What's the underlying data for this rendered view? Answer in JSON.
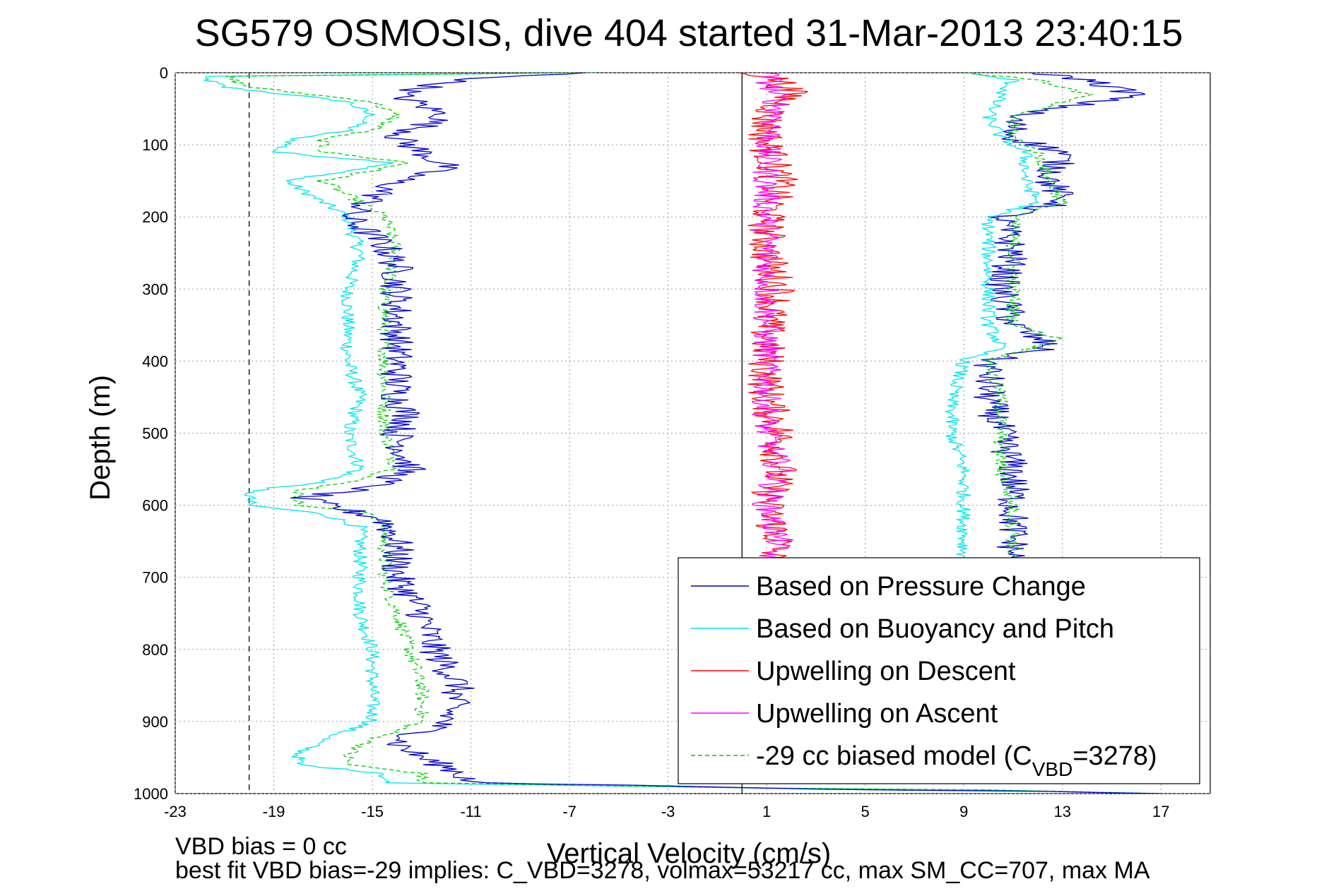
{
  "chart_data": {
    "type": "line",
    "title": "SG579 OSMOSIS, dive 404 started 31-Mar-2013 23:40:15",
    "xlabel": "Vertical Velocity (cm/s)",
    "ylabel": "Depth (m)",
    "xlim": [
      -23,
      19
    ],
    "ylim": [
      0,
      1000
    ],
    "y_reversed": true,
    "xticks": [
      -23,
      -19,
      -15,
      -11,
      -7,
      -3,
      1,
      5,
      9,
      13,
      17
    ],
    "yticks": [
      0,
      100,
      200,
      300,
      400,
      500,
      600,
      700,
      800,
      900,
      1000
    ],
    "grid": true,
    "legend_position": "bottom-right",
    "reference_lines": [
      {
        "x": -20,
        "style": "dashed",
        "color": "#000000"
      },
      {
        "x": 0,
        "style": "solid",
        "color": "#000000"
      }
    ],
    "series": [
      {
        "name": "Based on Pressure Change",
        "color": "#0000cc",
        "style": "solid",
        "noise": 0.7,
        "points": [
          [
            -6.5,
            0
          ],
          [
            -11.5,
            10
          ],
          [
            -14,
            30
          ],
          [
            -12,
            60
          ],
          [
            -14,
            90
          ],
          [
            -13,
            110
          ],
          [
            -12,
            130
          ],
          [
            -14,
            150
          ],
          [
            -16,
            200
          ],
          [
            -14.5,
            240
          ],
          [
            -14,
            270
          ],
          [
            -14,
            300
          ],
          [
            -14,
            350
          ],
          [
            -14,
            400
          ],
          [
            -14,
            450
          ],
          [
            -13.5,
            480
          ],
          [
            -14,
            500
          ],
          [
            -13.5,
            550
          ],
          [
            -15,
            575
          ],
          [
            -18,
            590
          ],
          [
            -14.5,
            620
          ],
          [
            -14,
            650
          ],
          [
            -14,
            700
          ],
          [
            -13,
            750
          ],
          [
            -12.5,
            800
          ],
          [
            -11.5,
            850
          ],
          [
            -12,
            900
          ],
          [
            -14,
            930
          ],
          [
            -13,
            950
          ],
          [
            -11.5,
            970
          ],
          [
            -11,
            985
          ],
          [
            -2,
            990
          ],
          [
            3,
            994
          ],
          [
            12,
            997
          ],
          [
            17,
            1000
          ]
        ]
      },
      {
        "name": "Based on Buoyancy and Pitch",
        "color": "#00e5ee",
        "style": "solid",
        "noise": 0.3,
        "points": [
          [
            -6,
            0
          ],
          [
            -22,
            5
          ],
          [
            -21,
            20
          ],
          [
            -16,
            40
          ],
          [
            -15,
            60
          ],
          [
            -16,
            80
          ],
          [
            -18,
            90
          ],
          [
            -19,
            110
          ],
          [
            -14,
            125
          ],
          [
            -18.5,
            150
          ],
          [
            -17.5,
            170
          ],
          [
            -16,
            200
          ],
          [
            -15.5,
            250
          ],
          [
            -16,
            300
          ],
          [
            -16,
            350
          ],
          [
            -16,
            400
          ],
          [
            -15.5,
            450
          ],
          [
            -16,
            500
          ],
          [
            -15.5,
            550
          ],
          [
            -17,
            568
          ],
          [
            -20,
            580
          ],
          [
            -20,
            600
          ],
          [
            -17,
            612
          ],
          [
            -15.5,
            630
          ],
          [
            -15.5,
            700
          ],
          [
            -15.5,
            750
          ],
          [
            -15,
            800
          ],
          [
            -15,
            850
          ],
          [
            -15,
            900
          ],
          [
            -17,
            925
          ],
          [
            -18,
            945
          ],
          [
            -18,
            960
          ],
          [
            -14.5,
            972
          ],
          [
            -14.5,
            985
          ],
          [
            0,
            992
          ],
          [
            10,
            995
          ],
          [
            17,
            1000
          ]
        ]
      },
      {
        "name": "Upwelling on Descent",
        "color": "#ff0000",
        "style": "solid",
        "noise": 0.8,
        "points": [
          [
            0.5,
            0
          ],
          [
            1.5,
            10
          ],
          [
            2,
            30
          ],
          [
            1,
            60
          ],
          [
            1,
            100
          ],
          [
            1.5,
            150
          ],
          [
            1,
            200
          ],
          [
            1,
            250
          ],
          [
            1.5,
            300
          ],
          [
            1,
            350
          ],
          [
            1,
            400
          ],
          [
            1,
            450
          ],
          [
            1.5,
            500
          ],
          [
            1.5,
            550
          ],
          [
            1,
            600
          ],
          [
            1.5,
            650
          ],
          [
            1,
            680
          ]
        ]
      },
      {
        "name": "Upwelling on Ascent",
        "color": "#ff00ff",
        "style": "solid",
        "noise": 0.6,
        "points": [
          [
            1,
            0
          ],
          [
            1.5,
            50
          ],
          [
            1,
            100
          ],
          [
            1,
            150
          ],
          [
            1,
            200
          ],
          [
            1,
            250
          ],
          [
            1,
            300
          ],
          [
            1,
            350
          ],
          [
            1,
            400
          ],
          [
            1,
            450
          ],
          [
            1,
            500
          ],
          [
            1.5,
            550
          ],
          [
            1,
            600
          ],
          [
            1.5,
            650
          ],
          [
            1,
            680
          ]
        ]
      },
      {
        "name": "-29 cc biased model (C_VBD=3278)",
        "color": "#00cc00",
        "style": "dashed",
        "noise": 0.3,
        "points": [
          [
            -6,
            0
          ],
          [
            -21,
            5
          ],
          [
            -20,
            20
          ],
          [
            -15,
            40
          ],
          [
            -14,
            60
          ],
          [
            -15,
            80
          ],
          [
            -17,
            90
          ],
          [
            -17,
            110
          ],
          [
            -13.5,
            125
          ],
          [
            -17,
            150
          ],
          [
            -16,
            170
          ],
          [
            -14.5,
            200
          ],
          [
            -14,
            250
          ],
          [
            -14.5,
            300
          ],
          [
            -14.5,
            350
          ],
          [
            -14.5,
            400
          ],
          [
            -14.5,
            450
          ],
          [
            -14.5,
            500
          ],
          [
            -14,
            550
          ],
          [
            -16,
            568
          ],
          [
            -18,
            580
          ],
          [
            -18,
            600
          ],
          [
            -15,
            612
          ],
          [
            -14.5,
            630
          ],
          [
            -14.5,
            700
          ],
          [
            -14,
            750
          ],
          [
            -13.5,
            800
          ],
          [
            -13,
            850
          ],
          [
            -13,
            900
          ],
          [
            -15,
            925
          ],
          [
            -16,
            945
          ],
          [
            -16,
            960
          ],
          [
            -13,
            972
          ],
          [
            -13,
            985
          ],
          [
            0,
            992
          ],
          [
            10,
            995
          ],
          [
            17,
            1000
          ]
        ]
      }
    ],
    "series_positive": [
      {
        "name": "Based on Pressure Change",
        "color": "#0000cc",
        "style": "solid",
        "noise": 0.7,
        "points": [
          [
            12,
            0
          ],
          [
            14,
            10
          ],
          [
            16,
            30
          ],
          [
            11,
            60
          ],
          [
            11,
            90
          ],
          [
            13,
            110
          ],
          [
            12.5,
            150
          ],
          [
            13,
            180
          ],
          [
            10.5,
            200
          ],
          [
            11,
            250
          ],
          [
            10.5,
            300
          ],
          [
            11,
            350
          ],
          [
            12.5,
            380
          ],
          [
            10,
            400
          ],
          [
            10,
            450
          ],
          [
            10.5,
            500
          ],
          [
            11,
            550
          ],
          [
            11,
            600
          ],
          [
            11,
            650
          ],
          [
            11,
            680
          ]
        ]
      },
      {
        "name": "Based on Buoyancy and Pitch",
        "color": "#00e5ee",
        "style": "solid",
        "noise": 0.3,
        "points": [
          [
            9,
            0
          ],
          [
            11,
            10
          ],
          [
            10.5,
            30
          ],
          [
            10,
            60
          ],
          [
            10.5,
            90
          ],
          [
            11.5,
            110
          ],
          [
            11.5,
            150
          ],
          [
            12,
            180
          ],
          [
            10,
            200
          ],
          [
            10,
            250
          ],
          [
            10,
            300
          ],
          [
            10,
            350
          ],
          [
            10.5,
            380
          ],
          [
            9,
            400
          ],
          [
            8.5,
            450
          ],
          [
            8.5,
            500
          ],
          [
            9,
            550
          ],
          [
            9,
            600
          ],
          [
            9,
            650
          ],
          [
            9,
            680
          ]
        ]
      },
      {
        "name": "-29 cc biased model (C_VBD=3278)",
        "color": "#00cc00",
        "style": "dashed",
        "noise": 0.3,
        "points": [
          [
            9,
            0
          ],
          [
            12,
            10
          ],
          [
            14,
            30
          ],
          [
            11,
            60
          ],
          [
            11,
            90
          ],
          [
            12,
            110
          ],
          [
            12.5,
            150
          ],
          [
            13,
            180
          ],
          [
            11,
            200
          ],
          [
            11,
            250
          ],
          [
            11,
            300
          ],
          [
            11,
            350
          ],
          [
            13,
            370
          ],
          [
            10,
            400
          ],
          [
            10.5,
            450
          ],
          [
            10.5,
            500
          ],
          [
            10.5,
            550
          ],
          [
            11,
            600
          ],
          [
            11,
            650
          ],
          [
            11,
            680
          ]
        ]
      }
    ]
  },
  "footer": {
    "line1": "VBD bias = 0 cc",
    "line2": "best fit VBD bias=-29 implies: C_VBD=3278, volmax=53217 cc, max SM_CC=707, max MA"
  }
}
